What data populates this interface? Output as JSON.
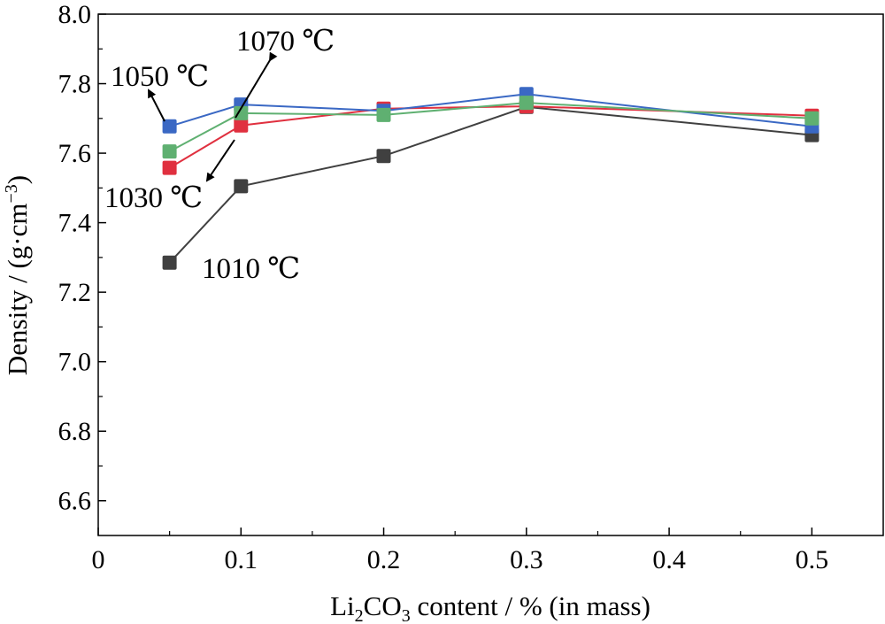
{
  "chart_data": {
    "type": "line",
    "xlabel_parts": [
      "Li",
      "2",
      "CO",
      "3",
      " content / % (in mass)"
    ],
    "ylabel_parts": [
      "Density / (g·cm",
      "−3",
      ")"
    ],
    "xlim": [
      0,
      0.55
    ],
    "ylim": [
      6.5,
      8.0
    ],
    "x_ticks": [
      0,
      0.1,
      0.2,
      0.3,
      0.4,
      0.5
    ],
    "x_tick_labels": [
      "0",
      "0.1",
      "0.2",
      "0.3",
      "0.4",
      "0.5"
    ],
    "y_ticks": [
      6.6,
      6.8,
      7.0,
      7.2,
      7.4,
      7.6,
      7.8,
      8.0
    ],
    "y_tick_labels": [
      "6.6",
      "6.8",
      "7.0",
      "7.2",
      "7.4",
      "7.6",
      "7.8",
      "8.0"
    ],
    "grid": false,
    "x": [
      0.05,
      0.1,
      0.2,
      0.3,
      0.5
    ],
    "series": [
      {
        "label": "1010 ℃",
        "color": "#404040",
        "values": [
          7.285,
          7.505,
          7.592,
          7.733,
          7.652
        ]
      },
      {
        "label": "1030 ℃",
        "color": "#e0303f",
        "values": [
          7.558,
          7.68,
          7.728,
          7.735,
          7.708
        ]
      },
      {
        "label": "1050 ℃",
        "color": "#3a68c4",
        "values": [
          7.677,
          7.74,
          7.722,
          7.77,
          7.677
        ]
      },
      {
        "label": "1070 ℃",
        "color": "#5fb071",
        "values": [
          7.605,
          7.715,
          7.71,
          7.745,
          7.7
        ]
      }
    ],
    "annotations": [
      {
        "text": "1070 ℃",
        "series": "1070 ℃"
      },
      {
        "text": "1050 ℃",
        "series": "1050 ℃"
      },
      {
        "text": "1030 ℃",
        "series": "1030 ℃"
      },
      {
        "text": "1010 ℃",
        "series": "1010 ℃"
      }
    ]
  }
}
